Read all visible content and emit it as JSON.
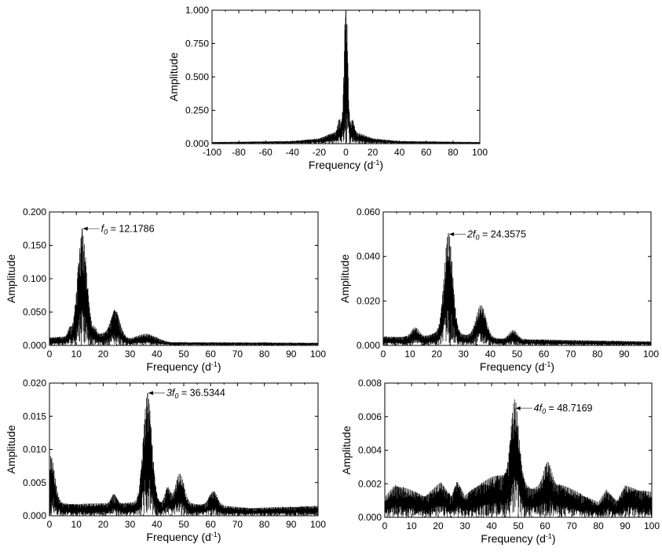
{
  "chart_data": [
    {
      "type": "line",
      "panel": "top",
      "xlabel_main": "Frequency (d",
      "xlabel_sup": "-1",
      "xlabel_end": ")",
      "ylabel": "Amplitude",
      "xlim": [
        -100,
        100
      ],
      "ylim": [
        0,
        1.0
      ],
      "xticks": [
        -100,
        -80,
        -60,
        -40,
        -20,
        0,
        20,
        40,
        60,
        80,
        100
      ],
      "yticks": [
        "0.000",
        "0.250",
        "0.500",
        "0.750",
        "1.000"
      ],
      "baseline": [
        [
          -100,
          0.012
        ],
        [
          -40,
          0.02
        ],
        [
          -20,
          0.04
        ],
        [
          -10,
          0.08
        ],
        [
          0,
          0.1
        ],
        [
          10,
          0.08
        ],
        [
          20,
          0.04
        ],
        [
          40,
          0.02
        ],
        [
          100,
          0.012
        ]
      ],
      "peaks": [
        [
          0,
          1.0,
          1.3
        ],
        [
          -5,
          0.1,
          1.2
        ],
        [
          5,
          0.1,
          1.2
        ]
      ],
      "annotation": null
    },
    {
      "type": "line",
      "panel": "f0",
      "xlabel_main": "Frequency (d",
      "xlabel_sup": "-1",
      "xlabel_end": ")",
      "ylabel": "Amplitude",
      "xlim": [
        0,
        100
      ],
      "ylim": [
        0,
        0.2
      ],
      "xticks": [
        0,
        10,
        20,
        30,
        40,
        50,
        60,
        70,
        80,
        90,
        100
      ],
      "yticks": [
        "0.000",
        "0.050",
        "0.100",
        "0.150",
        "0.200"
      ],
      "baseline": [
        [
          0,
          0.012
        ],
        [
          20,
          0.018
        ],
        [
          30,
          0.01
        ],
        [
          40,
          0.009
        ],
        [
          45,
          0.005
        ],
        [
          100,
          0.004
        ]
      ],
      "peaks": [
        [
          12.1786,
          0.155,
          1.7
        ],
        [
          24.5,
          0.04,
          1.7
        ],
        [
          36,
          0.008,
          3
        ],
        [
          7.5,
          0.012,
          0.6
        ],
        [
          17,
          0.008,
          0.6
        ]
      ],
      "annotation": {
        "x": 12.1786,
        "y": 0.175,
        "label_main": "f",
        "label_sub": "0",
        "label_rest": " = 12.1786"
      }
    },
    {
      "type": "line",
      "panel": "2f0",
      "xlabel_main": "Frequency (d",
      "xlabel_sup": "-1",
      "xlabel_end": ")",
      "ylabel": "Amplitude",
      "xlim": [
        0,
        100
      ],
      "ylim": [
        0,
        0.06
      ],
      "xticks": [
        0,
        10,
        20,
        30,
        40,
        50,
        60,
        70,
        80,
        90,
        100
      ],
      "yticks": [
        "0.000",
        "0.020",
        "0.040",
        "0.060"
      ],
      "baseline": [
        [
          0,
          0.004
        ],
        [
          15,
          0.004
        ],
        [
          20,
          0.006
        ],
        [
          30,
          0.005
        ],
        [
          45,
          0.003
        ],
        [
          100,
          0.0018
        ]
      ],
      "peaks": [
        [
          24.3575,
          0.045,
          1.6
        ],
        [
          36.5,
          0.014,
          1.8
        ],
        [
          12,
          0.004,
          1.5
        ],
        [
          48.5,
          0.004,
          1.5
        ]
      ],
      "annotation": {
        "x": 24.3575,
        "y": 0.05,
        "label_main": "2f",
        "label_sub": "0",
        "label_rest": " = 24.3575"
      }
    },
    {
      "type": "line",
      "panel": "3f0",
      "xlabel_main": "Frequency (d",
      "xlabel_sup": "-1",
      "xlabel_end": ")",
      "ylabel": "Amplitude",
      "xlim": [
        0,
        100
      ],
      "ylim": [
        0,
        0.02
      ],
      "xticks": [
        0,
        10,
        20,
        30,
        40,
        50,
        60,
        70,
        80,
        90,
        100
      ],
      "yticks": [
        "0.000",
        "0.005",
        "0.010",
        "0.015",
        "0.020"
      ],
      "baseline": [
        [
          0,
          0.002
        ],
        [
          10,
          0.0018
        ],
        [
          30,
          0.002
        ],
        [
          55,
          0.0018
        ],
        [
          75,
          0.0012
        ],
        [
          100,
          0.0015
        ]
      ],
      "peaks": [
        [
          36.5344,
          0.0165,
          1.6
        ],
        [
          0.5,
          0.007,
          1.5
        ],
        [
          48.5,
          0.0045,
          1.6
        ],
        [
          44,
          0.0025,
          1.0
        ],
        [
          61,
          0.0022,
          1.5
        ],
        [
          24,
          0.0015,
          1.0
        ]
      ],
      "annotation": {
        "x": 36.5344,
        "y": 0.0185,
        "label_main": "3f",
        "label_sub": "0",
        "label_rest": " = 36.5344"
      }
    },
    {
      "type": "line",
      "panel": "4f0",
      "xlabel_main": "Frequency (d",
      "xlabel_sup": "-1",
      "xlabel_end": ")",
      "ylabel": "Amplitude",
      "xlim": [
        0,
        100
      ],
      "ylim": [
        0,
        0.008
      ],
      "xticks": [
        0,
        10,
        20,
        30,
        40,
        50,
        60,
        70,
        80,
        90,
        100
      ],
      "yticks": [
        "0.000",
        "0.002",
        "0.004",
        "0.006",
        "0.008"
      ],
      "baseline": [
        [
          0,
          0.0012
        ],
        [
          4,
          0.002
        ],
        [
          15,
          0.0013
        ],
        [
          21,
          0.0021
        ],
        [
          25,
          0.0013
        ],
        [
          27,
          0.0022
        ],
        [
          30,
          0.0013
        ],
        [
          35,
          0.002
        ],
        [
          40,
          0.0024
        ],
        [
          44,
          0.0026
        ],
        [
          55,
          0.0018
        ],
        [
          66,
          0.002
        ],
        [
          75,
          0.0013
        ],
        [
          80,
          0.0009
        ],
        [
          83,
          0.0017
        ],
        [
          87,
          0.001
        ],
        [
          90,
          0.0019
        ],
        [
          100,
          0.0015
        ]
      ],
      "peaks": [
        [
          48.7169,
          0.0048,
          1.5
        ],
        [
          61,
          0.0014,
          1.5
        ]
      ],
      "annotation": {
        "x": 48.7169,
        "y": 0.0065,
        "label_main": "4f",
        "label_sub": "0",
        "label_rest": " = 48.7169"
      }
    }
  ]
}
